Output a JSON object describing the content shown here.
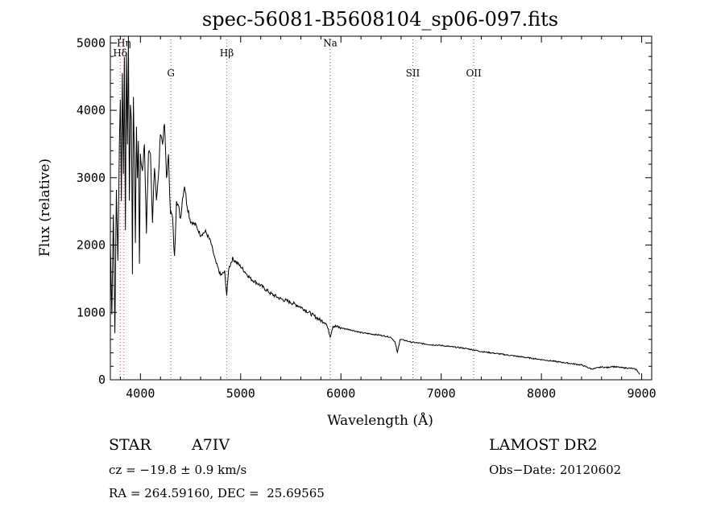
{
  "chart_data": {
    "type": "line",
    "title": "spec-56081-B5608104_sp06-097.fits",
    "xlabel": "Wavelength (Å)",
    "ylabel": "Flux (relative)",
    "xlim": [
      3700,
      9100
    ],
    "ylim": [
      0,
      5100
    ],
    "xticks": [
      4000,
      5000,
      6000,
      7000,
      8000,
      9000
    ],
    "yticks": [
      0,
      1000,
      2000,
      3000,
      4000,
      5000
    ],
    "grid": false,
    "line_color": "#000000",
    "marker_color": "#cc4444",
    "lines": [
      {
        "label": "Hη",
        "wavelength": 3835,
        "label_y": 4950
      },
      {
        "label": "Hδ",
        "wavelength": 3798,
        "label_y": 4800
      },
      {
        "label": "G",
        "wavelength": 4304,
        "label_y": 4500
      },
      {
        "label": "Hβ",
        "wavelength": 4861,
        "label_y": 4800
      },
      {
        "label": "Na",
        "wavelength": 5893,
        "label_y": 4950
      },
      {
        "label": "SII",
        "wavelength": 6717,
        "label_y": 4500
      },
      {
        "label": "OII",
        "wavelength": 7325,
        "label_y": 4500
      }
    ],
    "spectrum": {
      "x": [
        3700,
        3715,
        3730,
        3745,
        3760,
        3775,
        3790,
        3800,
        3810,
        3820,
        3830,
        3840,
        3850,
        3860,
        3870,
        3880,
        3890,
        3900,
        3910,
        3920,
        3930,
        3940,
        3950,
        3960,
        3970,
        3980,
        3990,
        4000,
        4020,
        4040,
        4060,
        4080,
        4100,
        4120,
        4140,
        4160,
        4180,
        4200,
        4220,
        4240,
        4260,
        4280,
        4300,
        4320,
        4340,
        4360,
        4380,
        4400,
        4420,
        4440,
        4460,
        4480,
        4500,
        4550,
        4600,
        4650,
        4700,
        4750,
        4800,
        4840,
        4861,
        4880,
        4920,
        5000,
        5100,
        5200,
        5300,
        5400,
        5500,
        5600,
        5700,
        5800,
        5850,
        5893,
        5920,
        6000,
        6100,
        6200,
        6300,
        6400,
        6500,
        6540,
        6563,
        6590,
        6650,
        6700,
        6800,
        6900,
        7000,
        7100,
        7200,
        7300,
        7400,
        7500,
        7600,
        7700,
        7800,
        7900,
        8000,
        8100,
        8200,
        8300,
        8400,
        8500,
        8542,
        8600,
        8662,
        8700,
        8800,
        8900,
        8950,
        8980
      ],
      "y": [
        2000,
        1000,
        2500,
        700,
        2800,
        1800,
        3500,
        4200,
        2600,
        4600,
        3000,
        4800,
        2200,
        4900,
        3500,
        5100,
        2700,
        4100,
        3900,
        1600,
        4200,
        3300,
        2000,
        3800,
        3000,
        3600,
        1700,
        3300,
        3100,
        3500,
        2200,
        3400,
        3300,
        2300,
        3200,
        2700,
        3000,
        3700,
        3500,
        3800,
        3000,
        3300,
        2500,
        2400,
        1800,
        2700,
        2550,
        2400,
        2700,
        2900,
        2650,
        2500,
        2350,
        2300,
        2150,
        2200,
        2050,
        1750,
        1550,
        1600,
        1250,
        1650,
        1800,
        1680,
        1500,
        1400,
        1280,
        1200,
        1150,
        1080,
        980,
        880,
        850,
        650,
        800,
        770,
        740,
        700,
        680,
        660,
        630,
        560,
        400,
        600,
        580,
        560,
        540,
        520,
        510,
        490,
        475,
        450,
        420,
        400,
        380,
        360,
        340,
        320,
        300,
        280,
        260,
        240,
        220,
        160,
        170,
        190,
        180,
        200,
        180,
        170,
        150,
        80
      ]
    }
  },
  "info": {
    "object_class": "STAR",
    "spectral_type": "A7IV",
    "survey": "LAMOST DR2",
    "velocity": "cz = −19.8 ± 0.9 km/s",
    "obs_date": "Obs−Date: 20120602",
    "coords": "RA = 264.59160, DEC =  25.69565"
  }
}
